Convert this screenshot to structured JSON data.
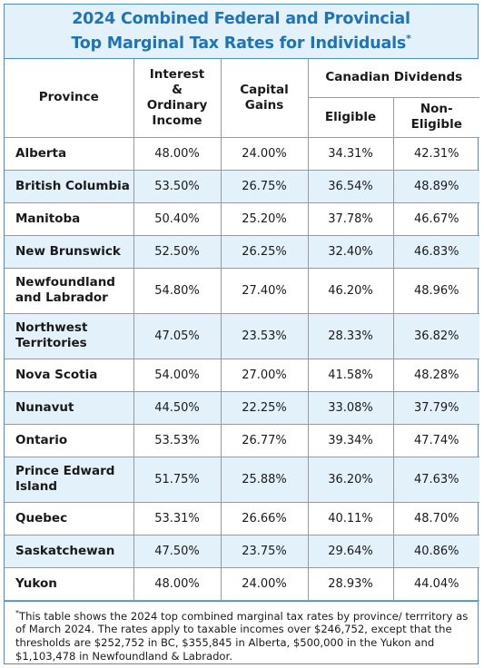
{
  "title": {
    "line1": "2024 Combined Federal and Provincial",
    "line2": "Top Marginal Tax Rates for Individuals",
    "mark": "*"
  },
  "headers": {
    "province": "Province",
    "interest": "Interest & Ordinary Income",
    "capital": "Capital Gains",
    "dividends": "Canadian Dividends",
    "eligible": "Eligible",
    "non_eligible": "Non-Eligible"
  },
  "rows": [
    {
      "province": "Alberta",
      "interest": "48.00%",
      "capital": "24.00%",
      "eligible": "34.31%",
      "non_eligible": "42.31%"
    },
    {
      "province": "British Columbia",
      "interest": "53.50%",
      "capital": "26.75%",
      "eligible": "36.54%",
      "non_eligible": "48.89%"
    },
    {
      "province": "Manitoba",
      "interest": "50.40%",
      "capital": "25.20%",
      "eligible": "37.78%",
      "non_eligible": "46.67%"
    },
    {
      "province": "New Brunswick",
      "interest": "52.50%",
      "capital": "26.25%",
      "eligible": "32.40%",
      "non_eligible": "46.83%"
    },
    {
      "province": "Newfoundland and Labrador",
      "interest": "54.80%",
      "capital": "27.40%",
      "eligible": "46.20%",
      "non_eligible": "48.96%"
    },
    {
      "province": "Northwest Territories",
      "interest": "47.05%",
      "capital": "23.53%",
      "eligible": "28.33%",
      "non_eligible": "36.82%"
    },
    {
      "province": "Nova Scotia",
      "interest": "54.00%",
      "capital": "27.00%",
      "eligible": "41.58%",
      "non_eligible": "48.28%"
    },
    {
      "province": "Nunavut",
      "interest": "44.50%",
      "capital": "22.25%",
      "eligible": "33.08%",
      "non_eligible": "37.79%"
    },
    {
      "province": "Ontario",
      "interest": "53.53%",
      "capital": "26.77%",
      "eligible": "39.34%",
      "non_eligible": "47.74%"
    },
    {
      "province": "Prince Edward Island",
      "interest": "51.75%",
      "capital": "25.88%",
      "eligible": "36.20%",
      "non_eligible": "47.63%"
    },
    {
      "province": "Quebec",
      "interest": "53.31%",
      "capital": "26.66%",
      "eligible": "40.11%",
      "non_eligible": "48.70%"
    },
    {
      "province": "Saskatchewan",
      "interest": "47.50%",
      "capital": "23.75%",
      "eligible": "29.64%",
      "non_eligible": "40.86%"
    },
    {
      "province": "Yukon",
      "interest": "48.00%",
      "capital": "24.00%",
      "eligible": "28.93%",
      "non_eligible": "44.04%"
    }
  ],
  "footnote": {
    "mark": "*",
    "text": "This table shows the 2024 top combined marginal tax rates by province/ terrritory as of March 2024. The rates apply to taxable incomes over $246,752, except that the thresholds are $252,752 in BC, $355,845 in Alberta, $500,000 in the Yukon and $1,103,478 in Newfoundland & Labrador."
  },
  "colors": {
    "accent": "#1f73b7",
    "border": "#4a90c8",
    "row_tint": "#e3f1fa"
  }
}
